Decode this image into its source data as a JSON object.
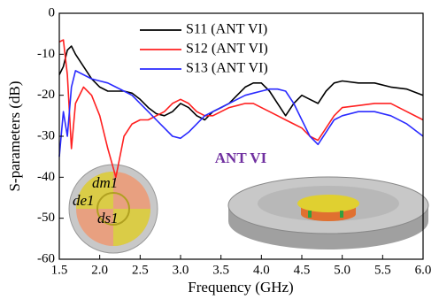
{
  "chart_data": {
    "type": "line",
    "x_label": "Frequency (GHz)",
    "y_label": "S-parameters (dB)",
    "x": [
      1.5,
      1.55,
      1.6,
      1.65,
      1.7,
      1.8,
      1.9,
      2.0,
      2.1,
      2.2,
      2.3,
      2.4,
      2.5,
      2.6,
      2.7,
      2.8,
      2.9,
      3.0,
      3.1,
      3.2,
      3.3,
      3.4,
      3.5,
      3.6,
      3.7,
      3.8,
      3.9,
      4.0,
      4.1,
      4.2,
      4.3,
      4.4,
      4.5,
      4.6,
      4.7,
      4.8,
      4.9,
      5.0,
      5.2,
      5.4,
      5.6,
      5.8,
      6.0
    ],
    "series": [
      {
        "name": "S11 (ANT VI)",
        "color": "#000000",
        "values": [
          -15,
          -13,
          -9,
          -8,
          -10,
          -13,
          -16,
          -18,
          -19,
          -19,
          -19,
          -19.5,
          -21,
          -23,
          -24.5,
          -25,
          -24,
          -22,
          -23,
          -25,
          -26,
          -24,
          -23,
          -22,
          -20,
          -18,
          -17,
          -17,
          -19,
          -22,
          -25,
          -22,
          -20,
          -21,
          -22,
          -19,
          -17,
          -16.5,
          -17,
          -17,
          -18,
          -18.5,
          -20
        ]
      },
      {
        "name": "S12 (ANT VI)",
        "color": "#ff2020",
        "values": [
          -7,
          -6.5,
          -15,
          -33,
          -22,
          -18,
          -20,
          -25,
          -33,
          -40,
          -30,
          -27,
          -26,
          -26,
          -25,
          -24,
          -22,
          -21,
          -22,
          -24,
          -25,
          -25,
          -24,
          -23,
          -22.5,
          -22,
          -22,
          -23,
          -24,
          -25,
          -26,
          -27,
          -28,
          -30,
          -31,
          -28,
          -25,
          -23,
          -22.5,
          -22,
          -22,
          -24,
          -26
        ]
      },
      {
        "name": "S13 (ANT VI)",
        "color": "#2a2aff",
        "values": [
          -35,
          -24,
          -30,
          -18,
          -14,
          -15,
          -16,
          -16.5,
          -17,
          -18,
          -19,
          -20,
          -22,
          -24,
          -26,
          -28,
          -30,
          -30.5,
          -29,
          -27,
          -25,
          -24,
          -23,
          -22,
          -21,
          -20,
          -19.5,
          -19,
          -18.5,
          -18.5,
          -19,
          -22,
          -26,
          -30,
          -32,
          -29,
          -26,
          -25,
          -24,
          -24,
          -25,
          -27,
          -30
        ]
      }
    ],
    "xlim": [
      1.5,
      6.0
    ],
    "xticks": [
      1.5,
      {
        "value": 2.0,
        "label": "2.0"
      },
      2.5,
      {
        "value": 3.0,
        "label": "3.0"
      },
      3.5,
      {
        "value": 4.0,
        "label": "4.0"
      },
      4.5,
      {
        "value": 5.0,
        "label": "5.0"
      },
      5.5,
      {
        "value": 6.0,
        "label": "6.0"
      }
    ],
    "ylim": [
      -60,
      0
    ],
    "yticks": [
      0,
      -10,
      -20,
      -30,
      -40,
      -50,
      -60
    ],
    "legend": "top-center",
    "annotations": [
      "ANT VI",
      "dm1",
      "de1",
      "ds1"
    ]
  }
}
